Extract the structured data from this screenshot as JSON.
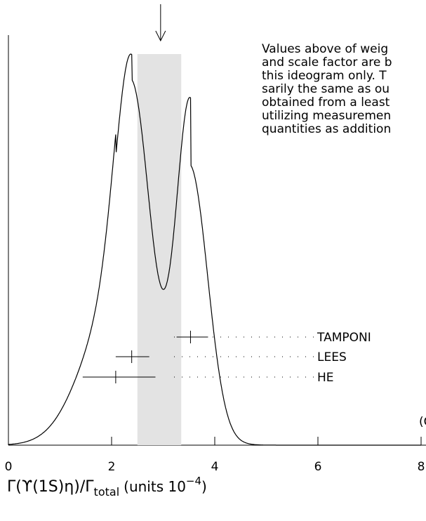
{
  "chart_data": {
    "type": "ideogram",
    "xlim": [
      0,
      8
    ],
    "xticks": [
      0,
      2,
      4,
      6,
      8
    ],
    "x_label_main": "Γ(ϒ(1S)η)/Γ",
    "x_label_sub": "total",
    "x_label_unit": "(units 10",
    "x_label_sup": "−4",
    "x_label_close": ")",
    "average": 2.95,
    "average_band": [
      2.5,
      3.35
    ],
    "measurements": [
      {
        "name": "TAMPONI",
        "value": 3.53,
        "error_minus": 0.27,
        "error_plus": 0.34
      },
      {
        "name": "LEES",
        "value": 2.39,
        "error_minus": 0.31,
        "error_plus": 0.34
      },
      {
        "name": "HE",
        "value": 2.08,
        "error_minus": 0.64,
        "error_plus": 0.77
      }
    ],
    "note": [
      "Values above of weig",
      "and scale factor are b",
      "this ideogram only.  T",
      "sarily the same as ou",
      "obtained from a least",
      "utilizing measuremen",
      "quantities as addition"
    ],
    "corner_label": "(Co"
  }
}
